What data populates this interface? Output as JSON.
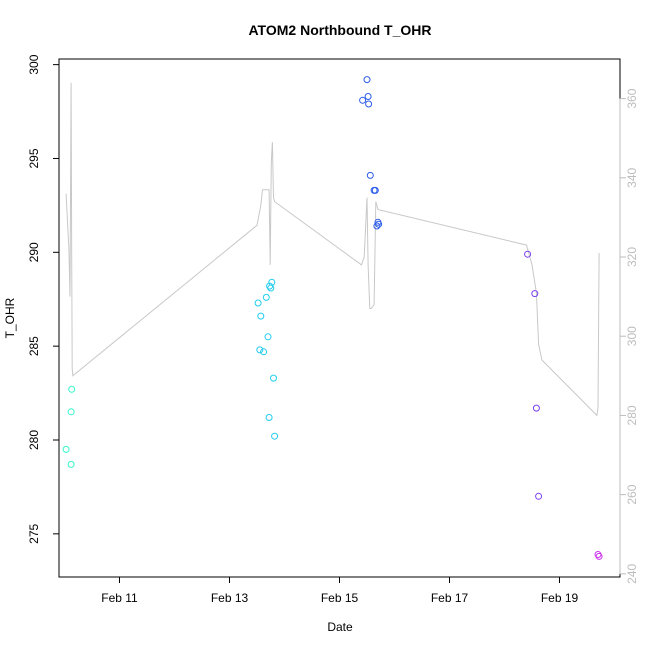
{
  "chart_data": {
    "type": "scatter",
    "title": "ATOM2 Northbound T_OHR",
    "xlabel": "Date",
    "ylabel": "T_OHR",
    "x_unit": "days (February)",
    "xlim": [
      9.9,
      20.1
    ],
    "ylim": [
      272.7,
      300.3
    ],
    "ylim_right": [
      239.2,
      370.0
    ],
    "x_ticks": [
      {
        "value": 11,
        "label": "Feb 11"
      },
      {
        "value": 13,
        "label": "Feb 13"
      },
      {
        "value": 15,
        "label": "Feb 15"
      },
      {
        "value": 17,
        "label": "Feb 17"
      },
      {
        "value": 19,
        "label": "Feb 19"
      }
    ],
    "y_ticks": [
      275,
      280,
      285,
      290,
      295,
      300
    ],
    "y_ticks_right": [
      240,
      260,
      280,
      300,
      320,
      340,
      360
    ],
    "grid": false,
    "legend": "none",
    "series": [
      {
        "kind": "points",
        "colors": [
          "#33f5cc",
          "#33f5cc",
          "#33f5cc",
          "#33f5cc",
          "#22ccee",
          "#22ccee",
          "#22ccee",
          "#22ccee",
          "#22ccee",
          "#22ccee",
          "#22ccee",
          "#22ccee",
          "#22ccee",
          "#22ccee",
          "#22ccee",
          "#22ccee",
          "#2a5be8",
          "#2a5be8",
          "#2a5be8",
          "#2a5be8",
          "#2a5be8",
          "#2a5be8",
          "#2a5be8",
          "#2a5be8",
          "#2a5be8",
          "#2a5be8",
          "#7b3ff0",
          "#7b3ff0",
          "#7b3ff0",
          "#7b3ff0",
          "#cc33ee",
          "#cc33ee"
        ],
        "x": [
          10.03,
          10.12,
          10.12,
          10.13,
          13.52,
          13.55,
          13.57,
          13.62,
          13.67,
          13.7,
          13.72,
          13.75,
          13.77,
          13.8,
          13.82,
          13.73,
          15.42,
          15.5,
          15.52,
          15.53,
          15.56,
          15.63,
          15.65,
          15.68,
          15.7,
          15.71,
          18.42,
          18.55,
          18.58,
          18.62,
          19.7,
          19.72
        ],
        "values": [
          279.5,
          278.7,
          281.5,
          282.7,
          287.3,
          284.8,
          286.6,
          284.7,
          287.6,
          285.5,
          281.2,
          288.1,
          288.4,
          283.3,
          280.2,
          288.2,
          298.1,
          299.2,
          298.3,
          297.9,
          294.1,
          293.3,
          293.3,
          291.4,
          291.6,
          291.5,
          289.9,
          287.8,
          281.7,
          277.0,
          273.9,
          273.8
        ]
      },
      {
        "kind": "line",
        "axis": "right",
        "color": "#c8c8c8",
        "x": [
          10.03,
          10.08,
          10.1,
          10.12,
          10.13,
          10.14,
          10.15,
          13.5,
          13.57,
          13.6,
          13.72,
          13.74,
          13.76,
          13.78,
          13.8,
          13.82,
          15.4,
          15.45,
          15.5,
          15.52,
          15.55,
          15.58,
          15.63,
          15.66,
          15.7,
          18.4,
          18.5,
          18.58,
          18.62,
          18.68,
          19.68,
          19.7,
          19.72
        ],
        "values": [
          336,
          322,
          310,
          364,
          320,
          292,
          290,
          328,
          333,
          337,
          337,
          318,
          344,
          349,
          335,
          334,
          318,
          320,
          335,
          318,
          307,
          307,
          308,
          334,
          332,
          323,
          318,
          311,
          298,
          294,
          280,
          282,
          321
        ]
      }
    ]
  }
}
